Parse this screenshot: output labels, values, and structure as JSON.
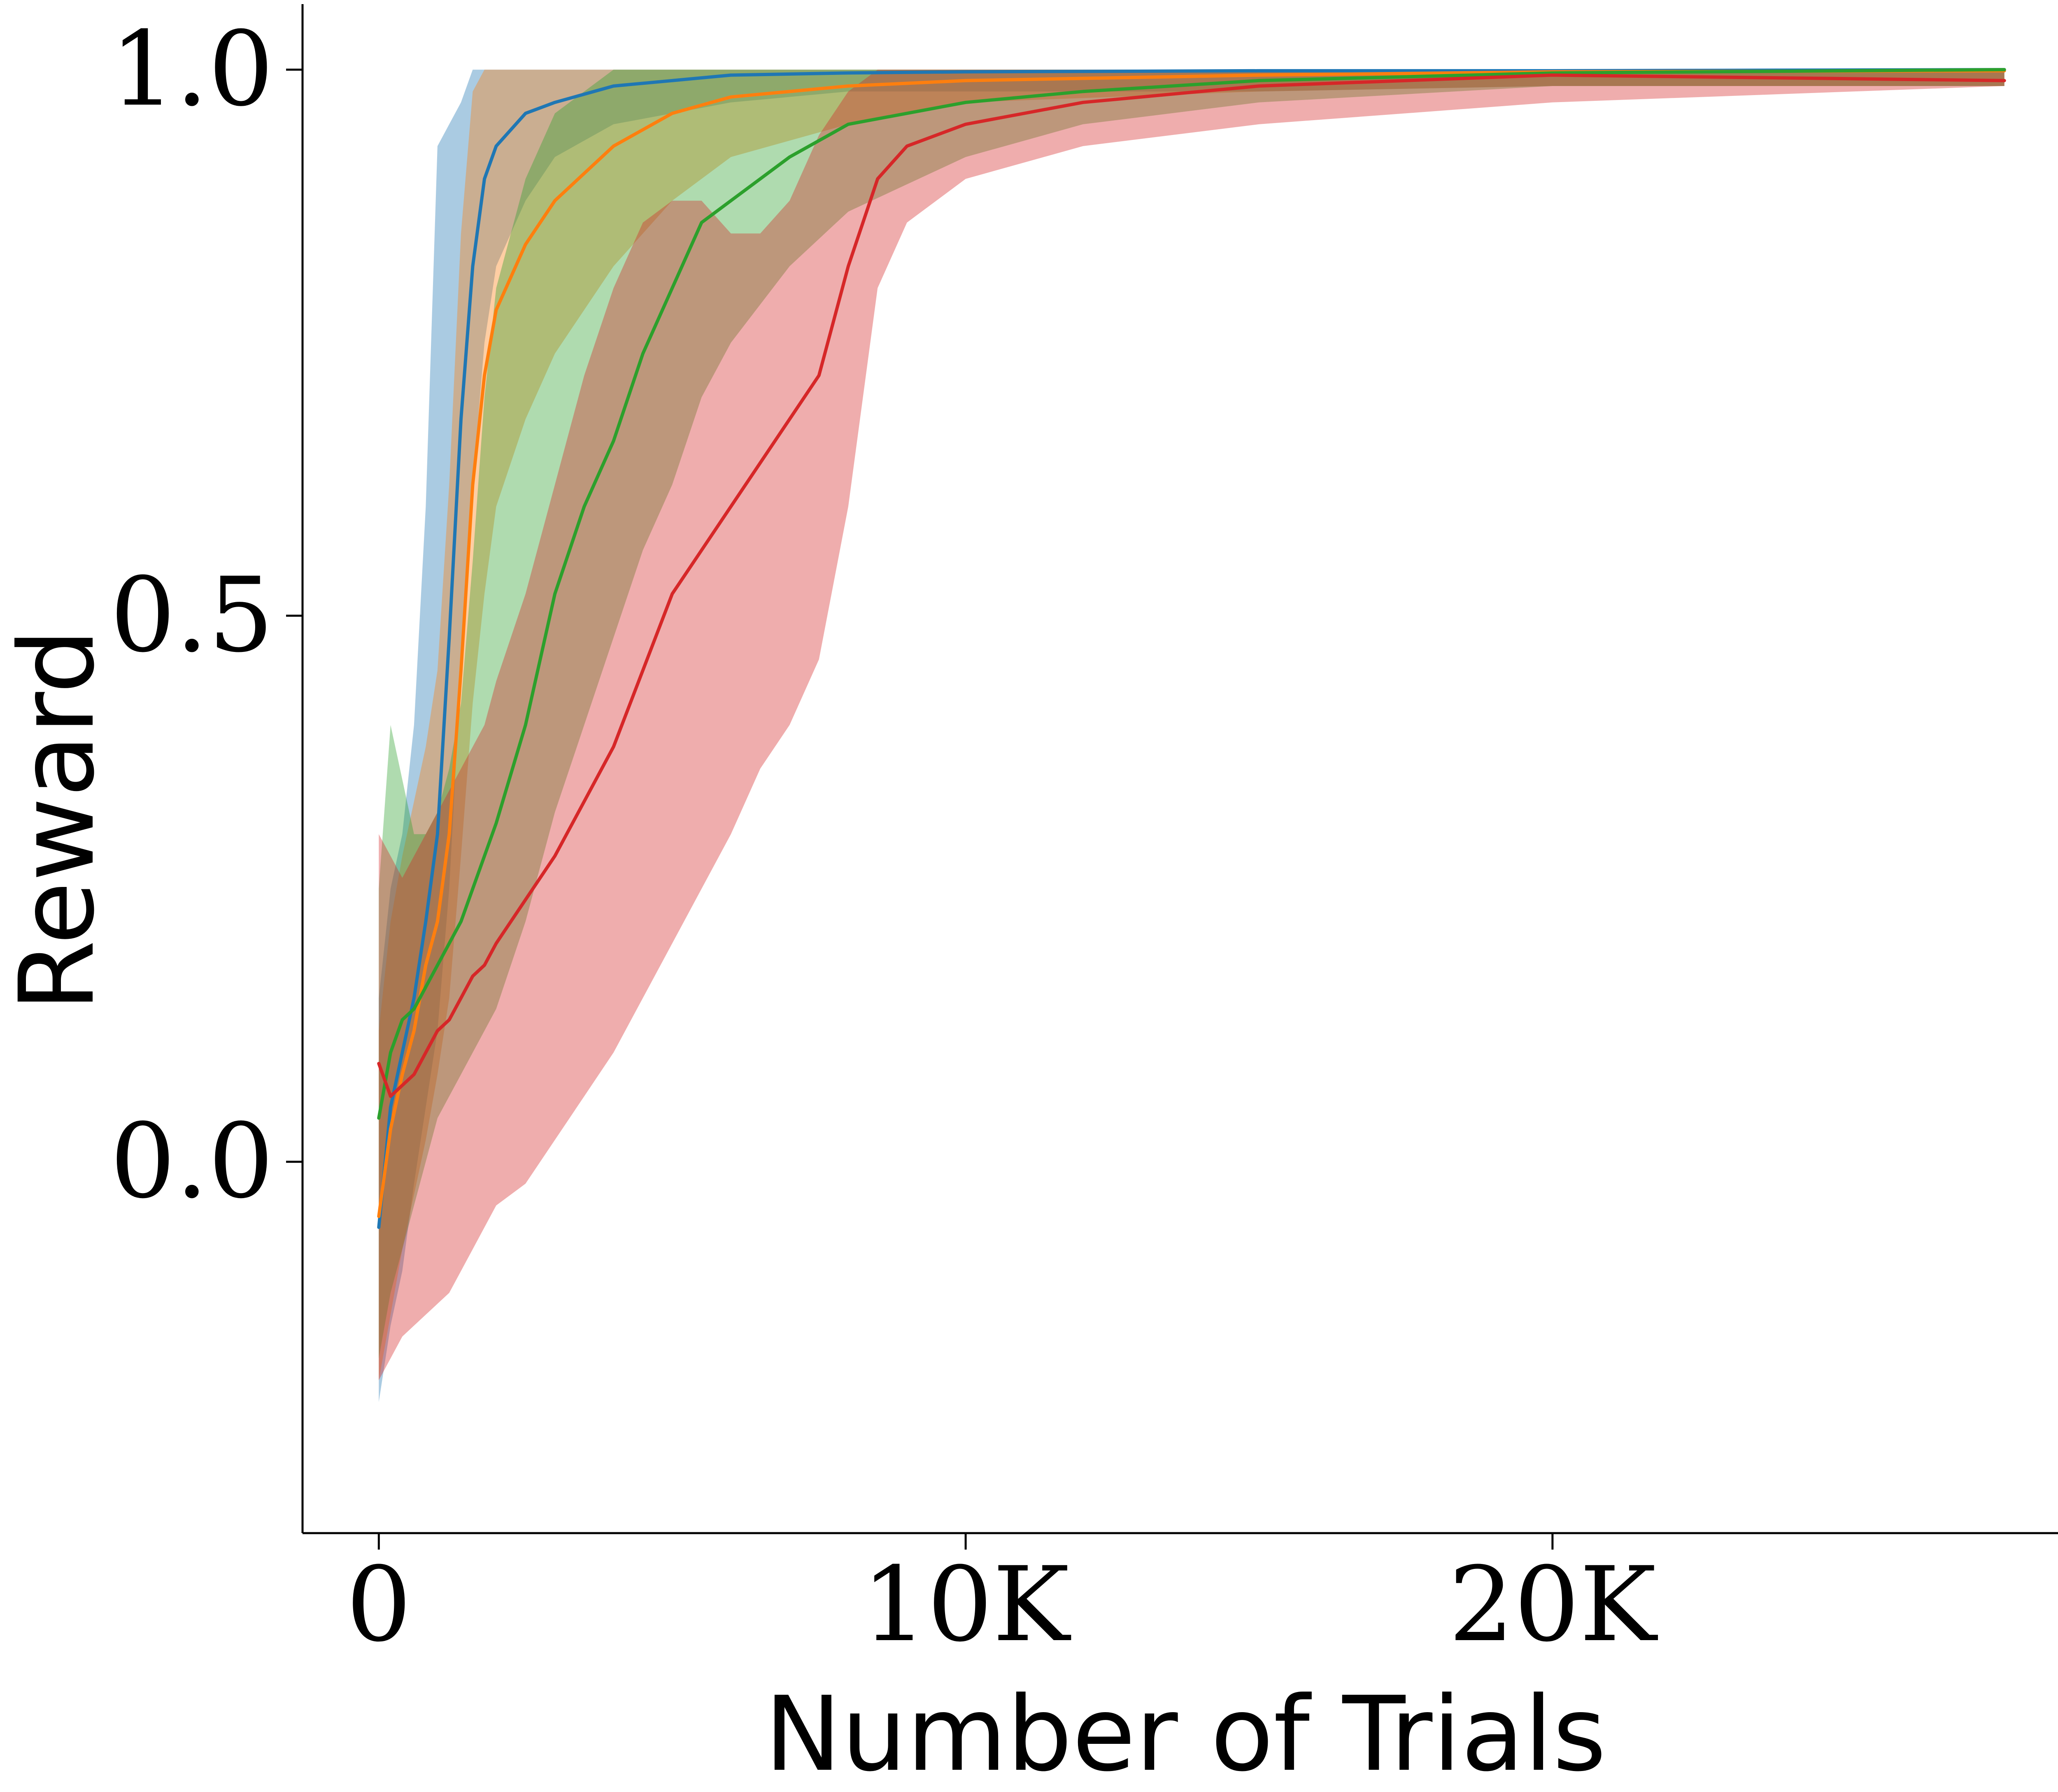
{
  "chart_data": {
    "type": "line",
    "xlabel": "Number of Trials",
    "ylabel": "Reward",
    "xlim": [
      -1300,
      29000
    ],
    "ylim": [
      -0.34,
      1.06
    ],
    "x_ticks": [
      {
        "value": 0,
        "label": "0"
      },
      {
        "value": 10000,
        "label": "10K"
      },
      {
        "value": 20000,
        "label": "20K"
      }
    ],
    "y_ticks": [
      {
        "value": 0.0,
        "label": "0.0"
      },
      {
        "value": 0.5,
        "label": "0.5"
      },
      {
        "value": 1.0,
        "label": "1.0"
      }
    ],
    "grid": false,
    "legend": "none",
    "band_opacity": 0.38,
    "series": [
      {
        "color": "#1f77b4",
        "x": [
          0,
          200,
          400,
          600,
          800,
          1000,
          1200,
          1400,
          1600,
          1800,
          2000,
          2500,
          3000,
          4000,
          5000,
          6000,
          8000,
          10000,
          15000,
          20000,
          27700
        ],
        "y": [
          -0.06,
          0.05,
          0.1,
          0.15,
          0.22,
          0.3,
          0.48,
          0.68,
          0.82,
          0.9,
          0.93,
          0.96,
          0.97,
          0.985,
          0.99,
          0.995,
          0.997,
          0.998,
          0.999,
          0.999,
          1.0
        ],
        "lower": [
          -0.22,
          -0.15,
          -0.1,
          -0.02,
          0.05,
          0.12,
          0.25,
          0.45,
          0.62,
          0.75,
          0.82,
          0.88,
          0.92,
          0.95,
          0.96,
          0.97,
          0.98,
          0.98,
          0.98,
          0.985,
          0.985
        ],
        "upper": [
          0.15,
          0.25,
          0.3,
          0.4,
          0.6,
          0.93,
          0.95,
          0.97,
          1.0,
          1.0,
          1.0,
          1.0,
          1.0,
          1.0,
          1.0,
          1.0,
          1.0,
          1.0,
          1.0,
          1.0,
          1.0
        ]
      },
      {
        "color": "#ff7f0e",
        "x": [
          0,
          200,
          400,
          600,
          800,
          1000,
          1200,
          1400,
          1600,
          1800,
          2000,
          2500,
          3000,
          4000,
          5000,
          6000,
          8000,
          10000,
          15000,
          20000,
          27700
        ],
        "y": [
          -0.05,
          0.03,
          0.08,
          0.12,
          0.18,
          0.22,
          0.3,
          0.45,
          0.62,
          0.72,
          0.78,
          0.84,
          0.88,
          0.93,
          0.96,
          0.975,
          0.985,
          0.99,
          0.995,
          0.998,
          0.999
        ],
        "lower": [
          -0.2,
          -0.14,
          -0.08,
          -0.03,
          0.02,
          0.08,
          0.15,
          0.28,
          0.42,
          0.52,
          0.6,
          0.68,
          0.74,
          0.82,
          0.88,
          0.92,
          0.95,
          0.97,
          0.98,
          0.985,
          0.985
        ],
        "upper": [
          0.12,
          0.22,
          0.28,
          0.33,
          0.38,
          0.45,
          0.62,
          0.85,
          0.98,
          1.0,
          1.0,
          1.0,
          1.0,
          1.0,
          1.0,
          1.0,
          1.0,
          1.0,
          1.0,
          1.0,
          1.0
        ]
      },
      {
        "color": "#2ca02c",
        "x": [
          0,
          200,
          400,
          600,
          800,
          1000,
          1200,
          1400,
          1600,
          1800,
          2000,
          2500,
          3000,
          3500,
          4000,
          4500,
          5000,
          5500,
          6000,
          7000,
          8000,
          10000,
          12000,
          15000,
          20000,
          27700
        ],
        "y": [
          0.04,
          0.1,
          0.13,
          0.14,
          0.16,
          0.18,
          0.2,
          0.22,
          0.25,
          0.28,
          0.31,
          0.4,
          0.52,
          0.6,
          0.66,
          0.74,
          0.8,
          0.86,
          0.88,
          0.92,
          0.95,
          0.97,
          0.98,
          0.99,
          0.997,
          1.0
        ],
        "lower": [
          -0.18,
          -0.12,
          -0.08,
          -0.04,
          0.0,
          0.04,
          0.06,
          0.08,
          0.1,
          0.12,
          0.14,
          0.22,
          0.32,
          0.4,
          0.48,
          0.56,
          0.62,
          0.7,
          0.75,
          0.82,
          0.87,
          0.92,
          0.95,
          0.97,
          0.985,
          0.985
        ],
        "upper": [
          0.25,
          0.4,
          0.35,
          0.3,
          0.3,
          0.32,
          0.36,
          0.42,
          0.55,
          0.7,
          0.8,
          0.9,
          0.96,
          0.98,
          1.0,
          1.0,
          1.0,
          1.0,
          1.0,
          1.0,
          1.0,
          1.0,
          1.0,
          1.0,
          1.0,
          1.0
        ]
      },
      {
        "color": "#d62728",
        "x": [
          0,
          200,
          400,
          600,
          800,
          1000,
          1200,
          1400,
          1600,
          1800,
          2000,
          2500,
          3000,
          3500,
          4000,
          4500,
          5000,
          5500,
          6000,
          6500,
          7000,
          7500,
          8000,
          8500,
          9000,
          10000,
          12000,
          15000,
          20000,
          27700
        ],
        "y": [
          0.09,
          0.06,
          0.07,
          0.08,
          0.1,
          0.12,
          0.13,
          0.15,
          0.17,
          0.18,
          0.2,
          0.24,
          0.28,
          0.33,
          0.38,
          0.45,
          0.52,
          0.56,
          0.6,
          0.64,
          0.68,
          0.72,
          0.82,
          0.9,
          0.93,
          0.95,
          0.97,
          0.985,
          0.995,
          0.99
        ],
        "lower": [
          -0.2,
          -0.18,
          -0.16,
          -0.15,
          -0.14,
          -0.13,
          -0.12,
          -0.1,
          -0.08,
          -0.06,
          -0.04,
          -0.02,
          0.02,
          0.06,
          0.1,
          0.15,
          0.2,
          0.25,
          0.3,
          0.36,
          0.4,
          0.46,
          0.6,
          0.8,
          0.86,
          0.9,
          0.93,
          0.95,
          0.97,
          0.985
        ],
        "upper": [
          0.3,
          0.28,
          0.26,
          0.28,
          0.3,
          0.32,
          0.34,
          0.36,
          0.38,
          0.4,
          0.44,
          0.52,
          0.62,
          0.72,
          0.8,
          0.86,
          0.88,
          0.88,
          0.85,
          0.85,
          0.88,
          0.94,
          0.98,
          1.0,
          1.0,
          1.0,
          1.0,
          1.0,
          1.0,
          1.0
        ]
      }
    ]
  }
}
